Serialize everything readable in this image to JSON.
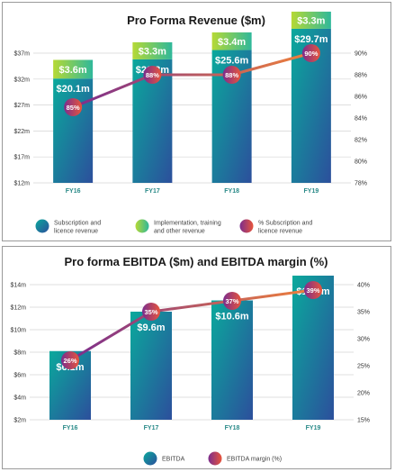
{
  "colors": {
    "bar_bottom_a": "#0aa99c",
    "bar_bottom_b": "#2c4f9c",
    "bar_top_a": "#b6d935",
    "bar_top_b": "#2fb89a",
    "line_a": "#7b2d8e",
    "line_b": "#f0813a",
    "marker_a": "#7b2d8e",
    "marker_b": "#e8553b",
    "category_text": "#2a8a88"
  },
  "chart_data": [
    {
      "type": "bar",
      "stacked": true,
      "title": "Pro Forma Revenue ($m)",
      "categories": [
        "FY16",
        "FY17",
        "FY18",
        "FY19"
      ],
      "series": [
        {
          "name": "Subscription and licence revenue",
          "values": [
            20.1,
            23.8,
            25.6,
            29.7
          ],
          "labels": [
            "$20.1m",
            "$23.8m",
            "$25.6m",
            "$29.7m"
          ]
        },
        {
          "name": "Implementation, training and other revenue",
          "values": [
            3.6,
            3.3,
            3.4,
            3.3
          ],
          "labels": [
            "$3.6m",
            "$3.3m",
            "$3.4m",
            "$3.3m"
          ]
        }
      ],
      "line_series": {
        "name": "% Subscription and licence revenue",
        "values": [
          85,
          88,
          88,
          90
        ],
        "labels": [
          "85%",
          "88%",
          "88%",
          "90%"
        ]
      },
      "ylim": [
        12,
        37
      ],
      "yticks": [
        "$12m",
        "$17m",
        "$22m",
        "$27m",
        "$32m",
        "$37m"
      ],
      "y2lim": [
        78,
        90
      ],
      "y2ticks": [
        "78%",
        "80%",
        "82%",
        "84%",
        "86%",
        "88%",
        "90%"
      ],
      "grid": true,
      "legend": "bottom",
      "legend_items": [
        {
          "lines": [
            "Subscription and",
            "licence revenue"
          ],
          "swatch": "bar_bottom"
        },
        {
          "lines": [
            "Implementation, training",
            "and other revenue"
          ],
          "swatch": "bar_top"
        },
        {
          "lines": [
            "% Subscription and",
            "licence revenue"
          ],
          "swatch": "marker"
        }
      ]
    },
    {
      "type": "bar",
      "title": "Pro forma EBITDA ($m) and EBITDA margin (%)",
      "categories": [
        "FY16",
        "FY17",
        "FY18",
        "FY19"
      ],
      "series": [
        {
          "name": "EBITDA",
          "values": [
            6.1,
            9.6,
            10.6,
            12.8
          ],
          "labels": [
            "$6.1m",
            "$9.6m",
            "$10.6m",
            "$12.8m"
          ]
        }
      ],
      "line_series": {
        "name": "EBITDA margin (%)",
        "values": [
          26,
          35,
          37,
          39
        ],
        "labels": [
          "26%",
          "35%",
          "37%",
          "39%"
        ]
      },
      "ylim": [
        2,
        14
      ],
      "yticks": [
        "$2m",
        "$4m",
        "$6m",
        "$8m",
        "$10m",
        "$12m",
        "$14m"
      ],
      "y2lim": [
        15,
        40
      ],
      "y2ticks": [
        "15%",
        "20%",
        "25%",
        "30%",
        "35%",
        "40%"
      ],
      "grid": true,
      "legend": "bottom",
      "legend_items": [
        {
          "lines": [
            "EBITDA"
          ],
          "swatch": "bar_bottom"
        },
        {
          "lines": [
            "EBITDA margin (%)"
          ],
          "swatch": "marker"
        }
      ]
    }
  ]
}
